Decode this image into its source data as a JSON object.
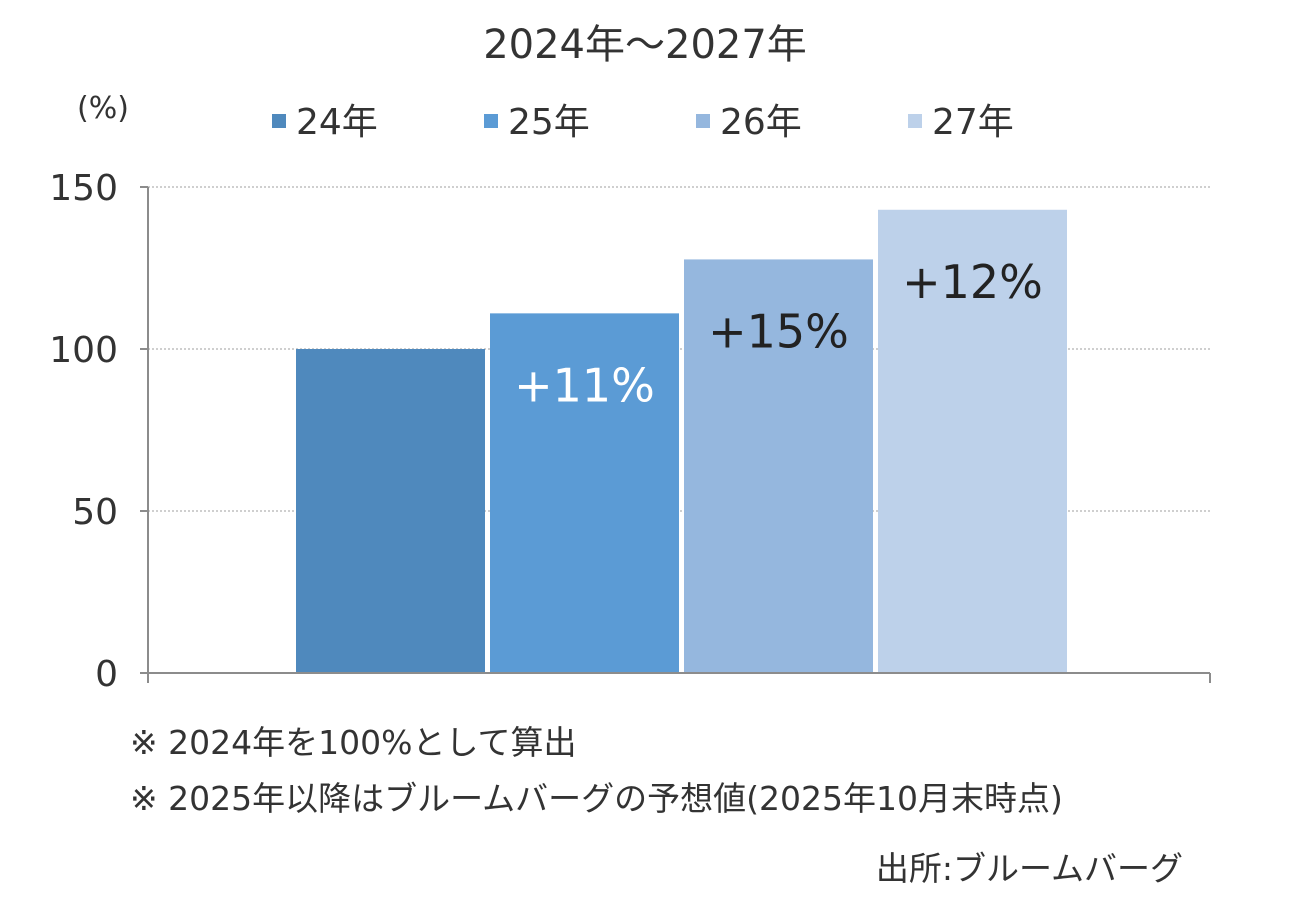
{
  "chart_data": {
    "type": "bar",
    "title": "2024年〜2027年",
    "unit_label": "(%)",
    "categories": [
      "24年",
      "25年",
      "26年",
      "27年"
    ],
    "values": [
      100,
      111,
      127.65,
      142.97
    ],
    "data_labels": [
      "",
      "+11%",
      "+15%",
      "+12%"
    ],
    "colors": [
      "#4f89bd",
      "#5b9bd5",
      "#95b7de",
      "#bdd1ea"
    ],
    "label_colors": [
      "#ffffff",
      "#ffffff",
      "#222222",
      "#222222"
    ],
    "ylim": [
      0,
      150
    ],
    "yticks": [
      "0",
      "50",
      "100",
      "150"
    ],
    "legend_position": "top",
    "grid": true,
    "xlabel": "",
    "ylabel": ""
  },
  "notes": [
    "※ 2024年を100%として算出",
    "※ 2025年以降はブルームバーグの予想値(2025年10月末時点)"
  ],
  "source": "出所:ブルームバーグ"
}
